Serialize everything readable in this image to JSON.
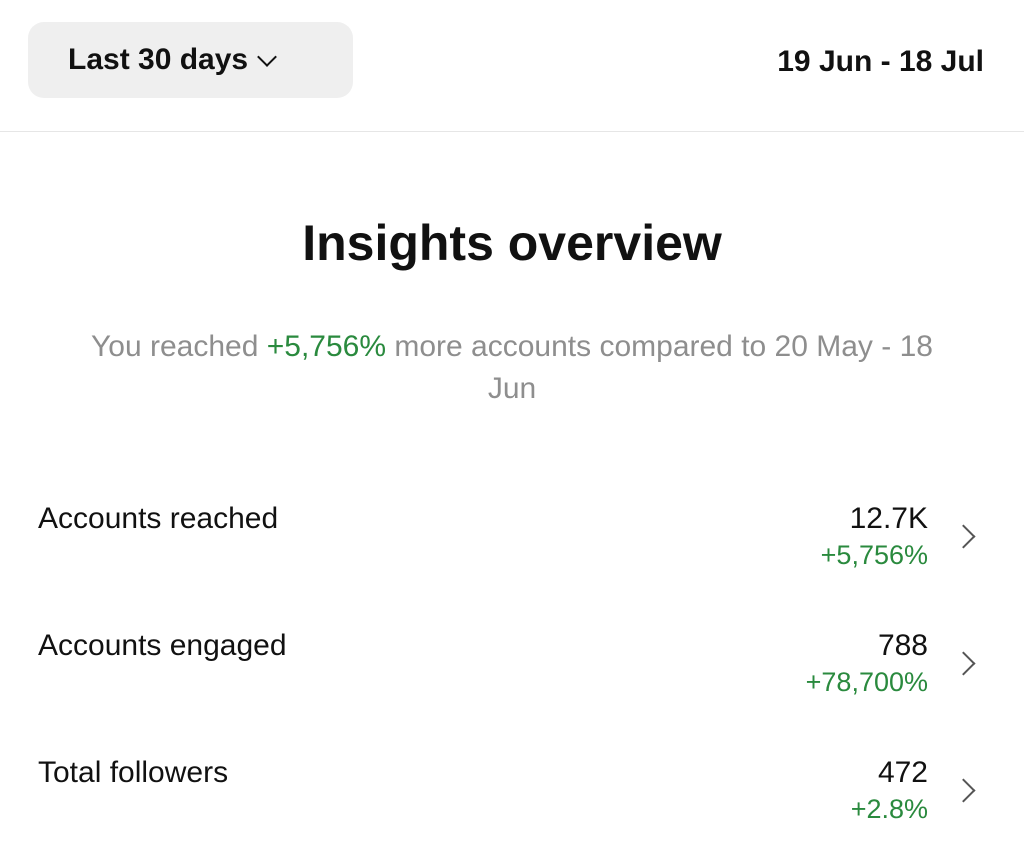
{
  "header": {
    "range_label": "Last 30 days",
    "date_range": "19 Jun - 18 Jul"
  },
  "overview": {
    "title": "Insights overview",
    "summary_prefix": "You reached ",
    "summary_highlight": "+5,756%",
    "summary_suffix": " more accounts compared to 20 May - 18 Jun"
  },
  "metrics": [
    {
      "label": "Accounts reached",
      "value": "12.7K",
      "change": "+5,756%"
    },
    {
      "label": "Accounts engaged",
      "value": "788",
      "change": "+78,700%"
    },
    {
      "label": "Total followers",
      "value": "472",
      "change": "+2.8%"
    }
  ],
  "colors": {
    "positive": "#2a8a3e",
    "muted_text": "#8e8e8e",
    "chip_background": "#efefef"
  },
  "icons": {
    "range_dropdown": "chevron-down-icon",
    "row_action": "chevron-right-icon"
  }
}
